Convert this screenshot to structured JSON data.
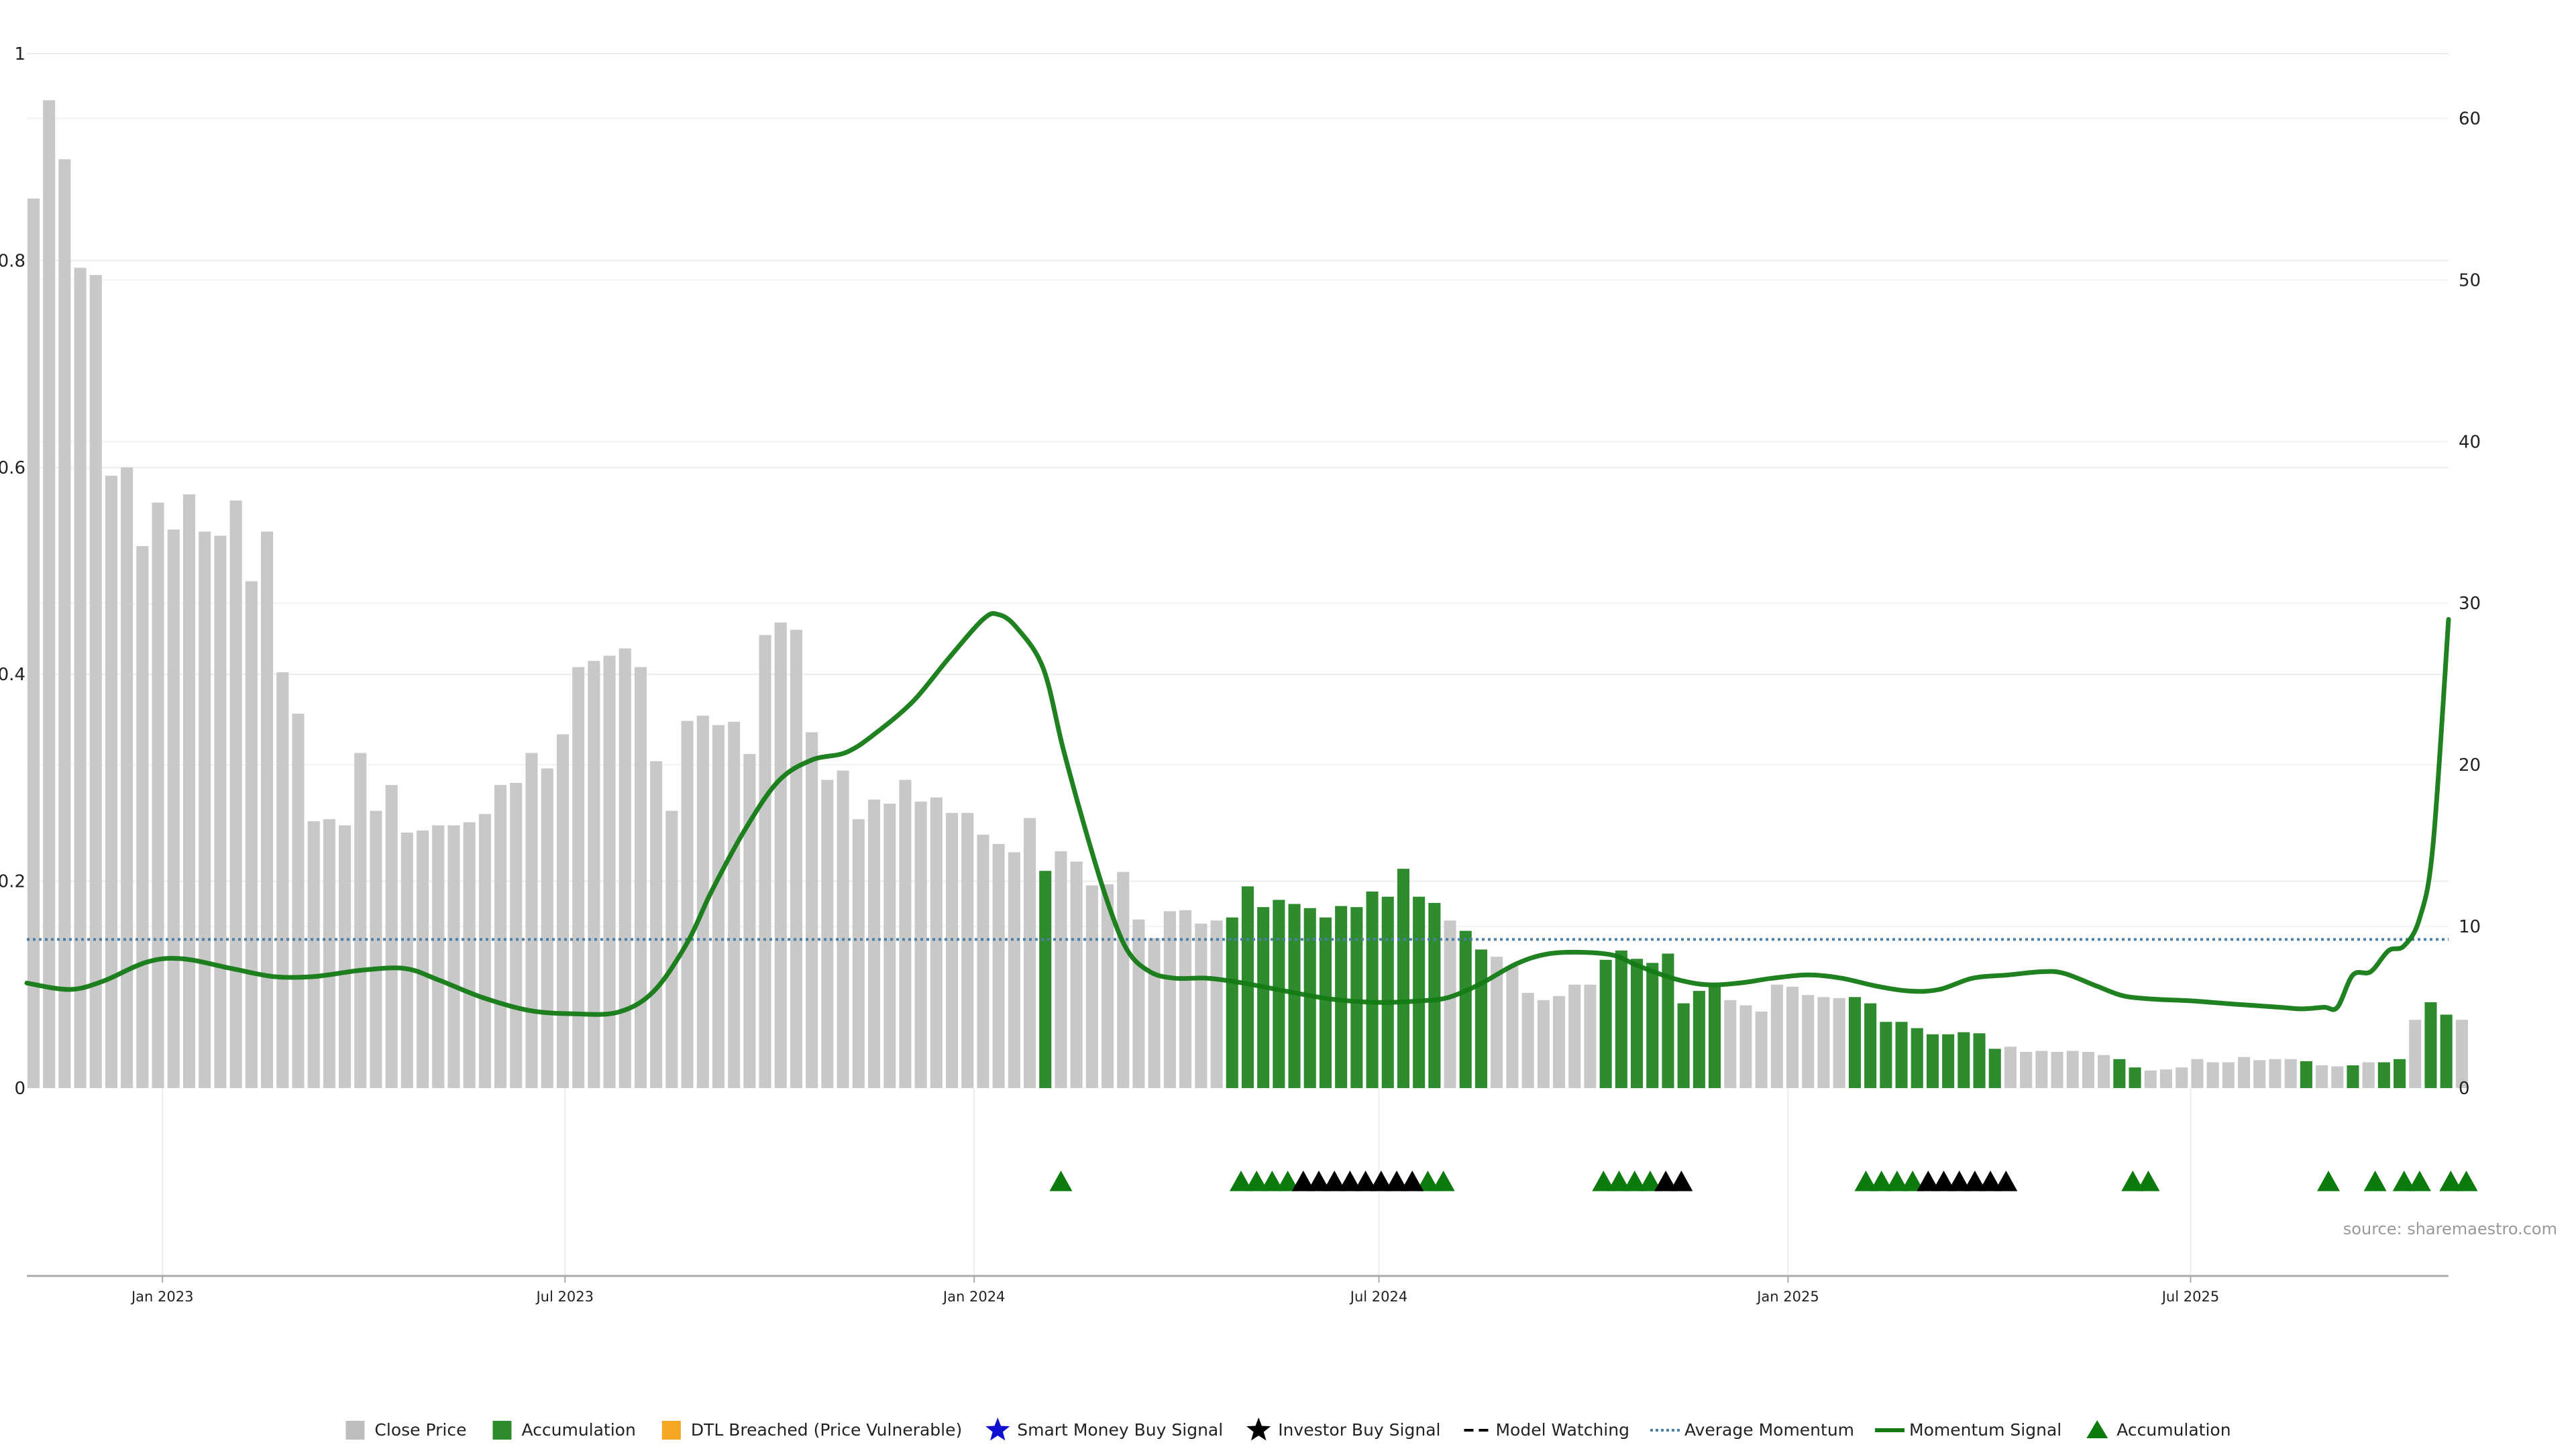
{
  "chart_data": {
    "type": "bar",
    "title": "",
    "xlabel": "",
    "ylabel": "",
    "left_axis": {
      "ylim": [
        0,
        1
      ],
      "ticks": [
        "0",
        "0.2",
        "0.4",
        "0.6",
        "0.8",
        "1"
      ]
    },
    "right_axis": {
      "ylim": [
        0,
        64
      ],
      "ticks": [
        "0",
        "10",
        "20",
        "30",
        "40",
        "50",
        "60"
      ]
    },
    "x_range": [
      "2022-11-01",
      "2025-10-25"
    ],
    "x_ticks": [
      {
        "date": "2023-01-01",
        "label": "Jan 2023"
      },
      {
        "date": "2023-07-01",
        "label": "Jul 2023"
      },
      {
        "date": "2024-01-01",
        "label": "Jan 2024"
      },
      {
        "date": "2024-07-01",
        "label": "Jul 2024"
      },
      {
        "date": "2025-01-01",
        "label": "Jan 2025"
      },
      {
        "date": "2025-07-01",
        "label": "Jul 2025"
      }
    ],
    "grid": true,
    "legend_position": "bottom",
    "source": "source: sharemaestro.com",
    "colors": {
      "close_price": "#c8c8c8",
      "accumulation": "#2e8b2e",
      "dtl_breached": "#f5a623",
      "smart_money": "#1010d0",
      "investor": "#000000",
      "model_watching": "#000000",
      "average_momentum": "#4a7fa8",
      "momentum_signal": "#147a14",
      "accumulation_marker": "#0d7a0d"
    },
    "series": [
      {
        "name": "Close Price",
        "type": "bar",
        "week_start": "2022-11-04",
        "values": [
          0.86,
          0.955,
          0.898,
          0.793,
          0.786,
          0.592,
          0.6,
          0.524,
          0.566,
          0.54,
          0.574,
          0.538,
          0.534,
          0.568,
          0.49,
          0.538,
          0.402,
          0.362,
          0.258,
          0.26,
          0.254,
          0.324,
          0.268,
          0.293,
          0.247,
          0.249,
          0.254,
          0.254,
          0.257,
          0.265,
          0.293,
          0.295,
          0.324,
          0.309,
          0.342,
          0.407,
          0.413,
          0.418,
          0.425,
          0.407,
          0.316,
          0.268,
          0.355,
          0.36,
          0.351,
          0.354,
          0.323,
          0.438,
          0.45,
          0.443,
          0.344,
          0.298,
          0.307,
          0.26,
          0.279,
          0.275,
          0.298,
          0.277,
          0.281,
          0.266,
          0.266,
          0.245,
          0.236,
          0.228,
          0.261,
          0.21,
          0.229,
          0.219,
          0.196,
          0.197,
          0.209,
          0.163,
          0.145,
          0.171,
          0.172,
          0.159,
          0.162,
          0.165,
          0.195,
          0.175,
          0.182,
          0.178,
          0.174,
          0.165,
          0.176,
          0.175,
          0.19,
          0.185,
          0.212,
          0.185,
          0.179,
          0.162,
          0.152,
          0.134,
          0.127,
          0.118,
          0.092,
          0.085,
          0.089,
          0.1,
          0.1,
          0.124,
          0.133,
          0.125,
          0.121,
          0.13,
          0.082,
          0.094,
          0.098,
          0.085,
          0.08,
          0.074,
          0.1,
          0.098,
          0.09,
          0.088,
          0.087,
          0.088,
          0.082,
          0.064,
          0.064,
          0.058,
          0.052,
          0.052,
          0.054,
          0.053,
          0.038,
          0.04,
          0.035,
          0.036,
          0.035,
          0.036,
          0.035,
          0.032,
          0.028,
          0.02,
          0.017,
          0.018,
          0.02,
          0.028,
          0.025,
          0.025,
          0.03,
          0.027,
          0.028,
          0.028,
          0.026,
          0.022,
          0.021,
          0.022,
          0.025,
          0.025,
          0.028,
          0.066,
          0.083,
          0.071,
          0.066
        ],
        "accumulation_flags": [
          0,
          0,
          0,
          0,
          0,
          0,
          0,
          0,
          0,
          0,
          0,
          0,
          0,
          0,
          0,
          0,
          0,
          0,
          0,
          0,
          0,
          0,
          0,
          0,
          0,
          0,
          0,
          0,
          0,
          0,
          0,
          0,
          0,
          0,
          0,
          0,
          0,
          0,
          0,
          0,
          0,
          0,
          0,
          0,
          0,
          0,
          0,
          0,
          0,
          0,
          0,
          0,
          0,
          0,
          0,
          0,
          0,
          0,
          0,
          0,
          0,
          0,
          0,
          0,
          0,
          1,
          0,
          0,
          0,
          0,
          0,
          0,
          0,
          0,
          0,
          0,
          0,
          1,
          1,
          1,
          1,
          1,
          1,
          1,
          1,
          1,
          1,
          1,
          1,
          1,
          1,
          0,
          1,
          1,
          0,
          0,
          0,
          0,
          0,
          0,
          0,
          1,
          1,
          1,
          1,
          1,
          1,
          1,
          1,
          0,
          0,
          0,
          0,
          0,
          0,
          0,
          0,
          1,
          1,
          1,
          1,
          1,
          1,
          1,
          1,
          1,
          1,
          0,
          0,
          0,
          0,
          0,
          0,
          0,
          1,
          1,
          0,
          0,
          0,
          0,
          0,
          0,
          0,
          0,
          0,
          0,
          1,
          0,
          0,
          1,
          0,
          1,
          1,
          0,
          1,
          1,
          0,
          0
        ]
      },
      {
        "name": "Momentum Signal",
        "type": "line",
        "points": [
          [
            "2022-11-01",
            6.5
          ],
          [
            "2022-11-20",
            6.1
          ],
          [
            "2022-12-05",
            6.6
          ],
          [
            "2022-12-25",
            7.8
          ],
          [
            "2023-01-10",
            8.0
          ],
          [
            "2023-02-01",
            7.4
          ],
          [
            "2023-02-20",
            6.9
          ],
          [
            "2023-03-10",
            6.9
          ],
          [
            "2023-04-01",
            7.3
          ],
          [
            "2023-04-20",
            7.4
          ],
          [
            "2023-05-05",
            6.7
          ],
          [
            "2023-05-25",
            5.6
          ],
          [
            "2023-06-15",
            4.8
          ],
          [
            "2023-07-05",
            4.6
          ],
          [
            "2023-07-25",
            4.7
          ],
          [
            "2023-08-10",
            6.0
          ],
          [
            "2023-08-25",
            9.0
          ],
          [
            "2023-09-05",
            12.2
          ],
          [
            "2023-09-20",
            16.0
          ],
          [
            "2023-10-05",
            19.0
          ],
          [
            "2023-10-20",
            20.3
          ],
          [
            "2023-11-05",
            20.8
          ],
          [
            "2023-11-20",
            22.2
          ],
          [
            "2023-12-05",
            24.0
          ],
          [
            "2023-12-20",
            26.5
          ],
          [
            "2024-01-05",
            29.0
          ],
          [
            "2024-01-12",
            29.3
          ],
          [
            "2024-01-20",
            28.5
          ],
          [
            "2024-02-01",
            26.0
          ],
          [
            "2024-02-10",
            21.0
          ],
          [
            "2024-02-20",
            16.0
          ],
          [
            "2024-03-01",
            11.5
          ],
          [
            "2024-03-10",
            8.5
          ],
          [
            "2024-03-20",
            7.2
          ],
          [
            "2024-03-31",
            6.8
          ],
          [
            "2024-04-15",
            6.8
          ],
          [
            "2024-05-01",
            6.5
          ],
          [
            "2024-05-20",
            6.0
          ],
          [
            "2024-06-10",
            5.5
          ],
          [
            "2024-07-01",
            5.3
          ],
          [
            "2024-07-20",
            5.4
          ],
          [
            "2024-08-01",
            5.6
          ],
          [
            "2024-08-15",
            6.4
          ],
          [
            "2024-09-01",
            7.7
          ],
          [
            "2024-09-15",
            8.3
          ],
          [
            "2024-10-01",
            8.4
          ],
          [
            "2024-10-15",
            8.2
          ],
          [
            "2024-10-25",
            7.6
          ],
          [
            "2024-11-10",
            6.8
          ],
          [
            "2024-11-25",
            6.4
          ],
          [
            "2024-12-10",
            6.5
          ],
          [
            "2024-12-25",
            6.8
          ],
          [
            "2025-01-10",
            7.0
          ],
          [
            "2025-01-25",
            6.8
          ],
          [
            "2025-02-10",
            6.3
          ],
          [
            "2025-02-25",
            6.0
          ],
          [
            "2025-03-10",
            6.1
          ],
          [
            "2025-03-25",
            6.8
          ],
          [
            "2025-04-10",
            7.0
          ],
          [
            "2025-04-25",
            7.2
          ],
          [
            "2025-05-05",
            7.1
          ],
          [
            "2025-05-20",
            6.3
          ],
          [
            "2025-06-01",
            5.7
          ],
          [
            "2025-06-15",
            5.5
          ],
          [
            "2025-07-01",
            5.4
          ],
          [
            "2025-07-20",
            5.2
          ],
          [
            "2025-08-10",
            5.0
          ],
          [
            "2025-08-20",
            4.9
          ],
          [
            "2025-08-30",
            5.0
          ],
          [
            "2025-09-05",
            5.0
          ],
          [
            "2025-09-12",
            7.0
          ],
          [
            "2025-09-20",
            7.2
          ],
          [
            "2025-09-28",
            8.5
          ],
          [
            "2025-10-05",
            8.8
          ],
          [
            "2025-10-12",
            10.5
          ],
          [
            "2025-10-18",
            15.0
          ],
          [
            "2025-10-25",
            29.0
          ]
        ]
      },
      {
        "name": "Average Momentum",
        "type": "line",
        "value": 9.2
      },
      {
        "name": "Accumulation",
        "type": "marker",
        "shape": "triangle",
        "dates": [
          "2024-02-09",
          "2024-04-30",
          "2024-05-07",
          "2024-05-14",
          "2024-05-21",
          "2024-07-23",
          "2024-07-30",
          "2024-10-10",
          "2024-10-17",
          "2024-10-24",
          "2024-10-31",
          "2025-02-05",
          "2025-02-12",
          "2025-02-19",
          "2025-02-26",
          "2025-06-05",
          "2025-06-12",
          "2025-09-01",
          "2025-09-22",
          "2025-10-05",
          "2025-10-12",
          "2025-10-26",
          "2025-11-02"
        ]
      },
      {
        "name": "Investor Buy Signal",
        "type": "marker",
        "shape": "triangle-black",
        "dates": [
          "2024-05-28",
          "2024-06-04",
          "2024-06-11",
          "2024-06-18",
          "2024-06-25",
          "2024-07-02",
          "2024-07-09",
          "2024-07-16",
          "2024-11-07",
          "2024-11-14",
          "2025-03-05",
          "2025-03-12",
          "2025-03-19",
          "2025-03-26",
          "2025-04-02",
          "2025-04-09"
        ]
      }
    ],
    "legend": [
      {
        "label": "Close Price",
        "icon": "square",
        "color": "#bdbdbd"
      },
      {
        "label": "Accumulation",
        "icon": "square",
        "color": "#2e8b2e"
      },
      {
        "label": "DTL Breached (Price Vulnerable)",
        "icon": "square",
        "color": "#f5a623"
      },
      {
        "label": "Smart Money Buy Signal",
        "icon": "star",
        "color": "#1010d0"
      },
      {
        "label": "Investor Buy Signal",
        "icon": "star",
        "color": "#000000"
      },
      {
        "label": "Model Watching",
        "icon": "dash",
        "color": "#000000"
      },
      {
        "label": "Average Momentum",
        "icon": "dotted",
        "color": "#4a7fa8"
      },
      {
        "label": "Momentum Signal",
        "icon": "line",
        "color": "#147a14"
      },
      {
        "label": "Accumulation",
        "icon": "triangle",
        "color": "#0d7a0d"
      }
    ]
  }
}
